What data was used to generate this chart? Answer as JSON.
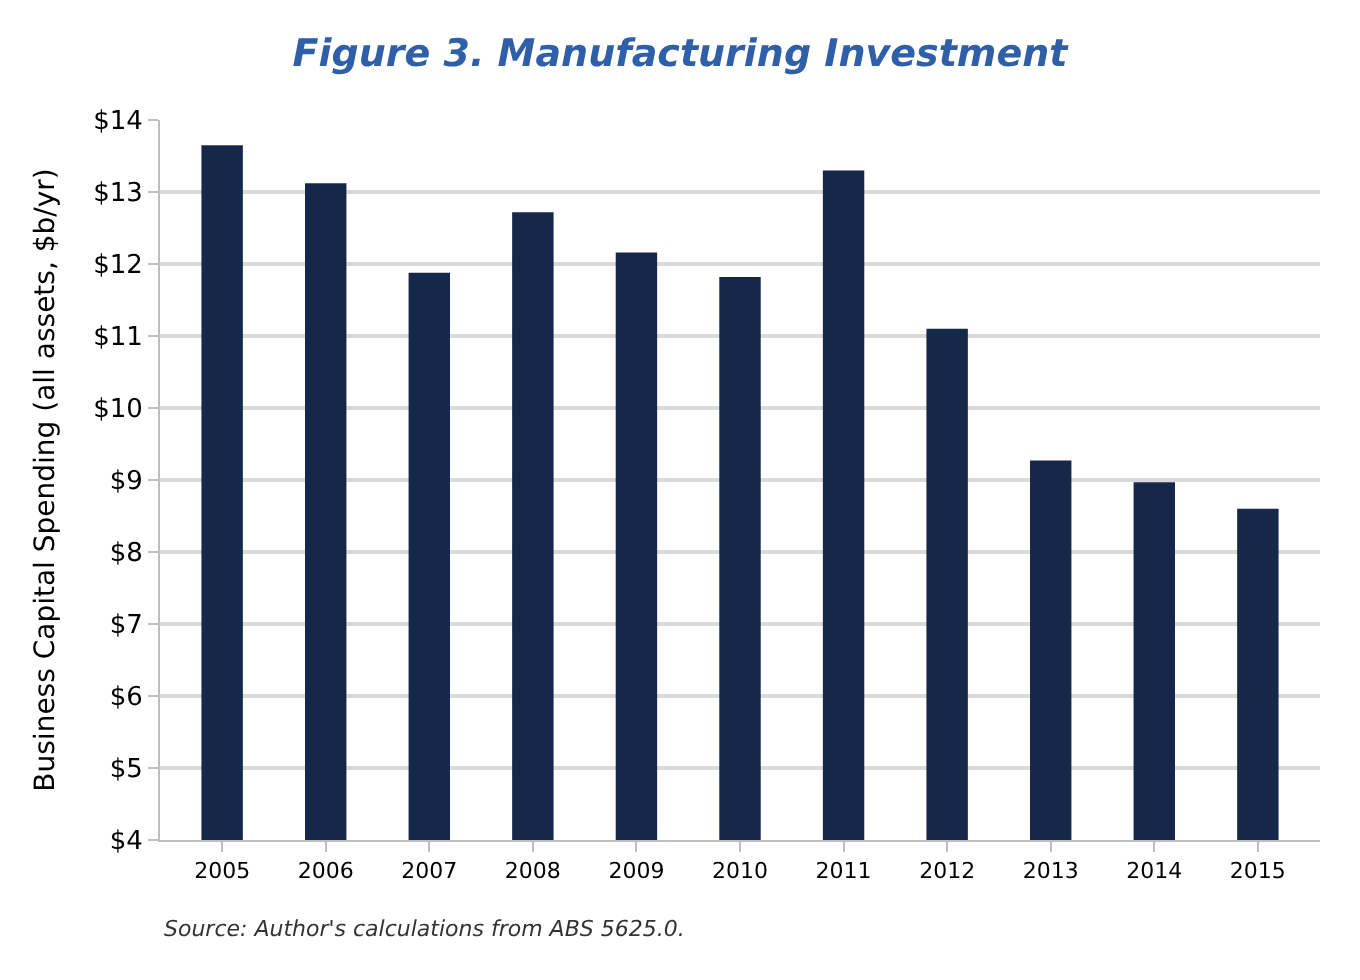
{
  "chart_data": {
    "type": "bar",
    "title": "Figure 3. Manufacturing Investment",
    "ylabel": "Business Capital Spending (all assets, $b/yr)",
    "categories": [
      "2005",
      "2006",
      "2007",
      "2008",
      "2009",
      "2010",
      "2011",
      "2012",
      "2013",
      "2014",
      "2015"
    ],
    "values": [
      13.65,
      13.12,
      11.88,
      12.72,
      12.16,
      11.82,
      13.3,
      11.1,
      9.27,
      8.97,
      8.6
    ],
    "color": "#16284a",
    "ylim": [
      4,
      14
    ],
    "yticks": [
      {
        "value": 4,
        "label": "$4"
      },
      {
        "value": 5,
        "label": "$5"
      },
      {
        "value": 6,
        "label": "$6"
      },
      {
        "value": 7,
        "label": "$7"
      },
      {
        "value": 8,
        "label": "$8"
      },
      {
        "value": 9,
        "label": "$9"
      },
      {
        "value": 10,
        "label": "$10"
      },
      {
        "value": 11,
        "label": "$11"
      },
      {
        "value": 12,
        "label": "$12"
      },
      {
        "value": 13,
        "label": "$13"
      },
      {
        "value": 14,
        "label": "$14"
      }
    ],
    "grid": "y",
    "legend": false,
    "annotations": [
      "Source: Author's calculations from ABS 5625.0."
    ]
  }
}
